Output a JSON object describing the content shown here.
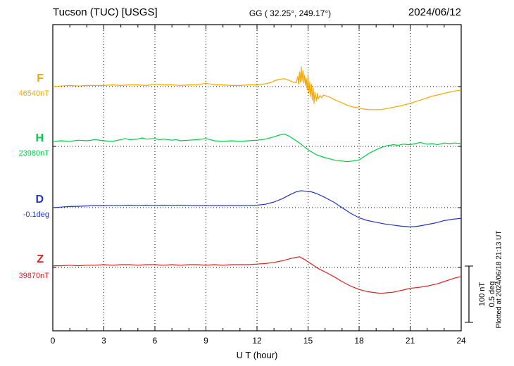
{
  "header": {
    "station": "Tucson (TUC)  [USGS]",
    "gg": "GG ( 32.25°, 249.17°)",
    "date": "2024/06/12"
  },
  "axis": {
    "xlabel": "U T (hour)"
  },
  "scale_bar": {
    "line1": "100 nT",
    "line2": "0.5 deg"
  },
  "plotted_at": "Plotted at 2024/06/18 21:13 UT",
  "chart_data": {
    "type": "line",
    "title": "Tucson (TUC) [USGS] magnetogram 2024/06/12",
    "xlabel": "U T (hour)",
    "xlim": [
      0,
      24
    ],
    "x_ticks": [
      0,
      3,
      6,
      9,
      12,
      15,
      18,
      21,
      24
    ],
    "grid": "dotted vertical lines every 3 h; dotted horizontal baseline per channel",
    "scale": {
      "nT_per_division": 100,
      "deg_per_division": 0.5
    },
    "series": [
      {
        "id": "F",
        "label": "F",
        "baseline_label": "46540nT",
        "unit": "nT",
        "color": "#F5A800",
        "points": [
          [
            0,
            0
          ],
          [
            0.5,
            1
          ],
          [
            1,
            2
          ],
          [
            1.5,
            1
          ],
          [
            2,
            2
          ],
          [
            2.5,
            2
          ],
          [
            3,
            2
          ],
          [
            3.5,
            3
          ],
          [
            4,
            2
          ],
          [
            4.5,
            3
          ],
          [
            5,
            3
          ],
          [
            5.5,
            2
          ],
          [
            6,
            4
          ],
          [
            6.5,
            3
          ],
          [
            7,
            3
          ],
          [
            7.5,
            2
          ],
          [
            8,
            3
          ],
          [
            8.5,
            3
          ],
          [
            9,
            6
          ],
          [
            9.3,
            4
          ],
          [
            9.6,
            3
          ],
          [
            10,
            3
          ],
          [
            10.5,
            2
          ],
          [
            11,
            2
          ],
          [
            11.5,
            3
          ],
          [
            12,
            3
          ],
          [
            12.5,
            5
          ],
          [
            12.8,
            7
          ],
          [
            13,
            10
          ],
          [
            13.3,
            13
          ],
          [
            13.6,
            14
          ],
          [
            13.9,
            11
          ],
          [
            14.1,
            8
          ],
          [
            14.3,
            7
          ],
          [
            14.4,
            18
          ],
          [
            14.45,
            4
          ],
          [
            14.5,
            26
          ],
          [
            14.55,
            8
          ],
          [
            14.6,
            35
          ],
          [
            14.65,
            10
          ],
          [
            14.7,
            28
          ],
          [
            14.75,
            6
          ],
          [
            14.8,
            20
          ],
          [
            14.85,
            2
          ],
          [
            14.9,
            15
          ],
          [
            14.95,
            -6
          ],
          [
            15,
            22
          ],
          [
            15.05,
            -12
          ],
          [
            15.1,
            8
          ],
          [
            15.15,
            -18
          ],
          [
            15.2,
            4
          ],
          [
            15.25,
            -24
          ],
          [
            15.3,
            -2
          ],
          [
            15.35,
            -30
          ],
          [
            15.4,
            -10
          ],
          [
            15.5,
            -26
          ],
          [
            15.55,
            -12
          ],
          [
            15.6,
            -22
          ],
          [
            15.7,
            -16
          ],
          [
            15.8,
            -20
          ],
          [
            15.9,
            -15
          ],
          [
            16,
            -16
          ],
          [
            16.3,
            -19
          ],
          [
            16.6,
            -24
          ],
          [
            17,
            -29
          ],
          [
            17.3,
            -33
          ],
          [
            17.6,
            -36
          ],
          [
            18,
            -38
          ],
          [
            18.3,
            -40
          ],
          [
            18.6,
            -41
          ],
          [
            19,
            -41
          ],
          [
            19.3,
            -41
          ],
          [
            19.6,
            -39
          ],
          [
            20,
            -37
          ],
          [
            20.3,
            -35
          ],
          [
            20.6,
            -33
          ],
          [
            21,
            -30
          ],
          [
            21.3,
            -27
          ],
          [
            21.6,
            -24
          ],
          [
            22,
            -20
          ],
          [
            22.3,
            -17
          ],
          [
            22.6,
            -15
          ],
          [
            23,
            -12
          ],
          [
            23.3,
            -10
          ],
          [
            23.6,
            -8
          ],
          [
            24,
            -6
          ]
        ]
      },
      {
        "id": "H",
        "label": "H",
        "baseline_label": "23980nT",
        "unit": "nT",
        "color": "#00CC44",
        "points": [
          [
            0,
            9
          ],
          [
            0.5,
            10
          ],
          [
            1,
            9
          ],
          [
            1.5,
            11
          ],
          [
            2,
            10
          ],
          [
            2.5,
            12
          ],
          [
            3,
            10
          ],
          [
            3.5,
            9
          ],
          [
            4,
            12
          ],
          [
            4.25,
            14
          ],
          [
            4.5,
            12
          ],
          [
            5,
            13
          ],
          [
            5.25,
            15
          ],
          [
            5.5,
            13
          ],
          [
            6,
            14
          ],
          [
            6.25,
            12
          ],
          [
            6.5,
            13
          ],
          [
            7,
            11
          ],
          [
            7.25,
            12
          ],
          [
            7.5,
            10
          ],
          [
            8,
            11
          ],
          [
            8.5,
            12
          ],
          [
            9,
            14
          ],
          [
            9.25,
            12
          ],
          [
            9.5,
            10
          ],
          [
            10,
            9
          ],
          [
            10.5,
            10
          ],
          [
            11,
            9
          ],
          [
            11.5,
            10
          ],
          [
            12,
            11
          ],
          [
            12.5,
            13
          ],
          [
            13,
            17
          ],
          [
            13.3,
            20
          ],
          [
            13.6,
            22
          ],
          [
            13.9,
            18
          ],
          [
            14.2,
            12
          ],
          [
            14.5,
            6
          ],
          [
            15,
            -6
          ],
          [
            15.5,
            -15
          ],
          [
            16,
            -20
          ],
          [
            16.5,
            -24
          ],
          [
            17,
            -26
          ],
          [
            17.3,
            -27
          ],
          [
            17.6,
            -26
          ],
          [
            18,
            -24
          ],
          [
            18.3,
            -18
          ],
          [
            18.6,
            -12
          ],
          [
            19,
            -6
          ],
          [
            19.3,
            -2
          ],
          [
            19.6,
            1
          ],
          [
            20,
            3
          ],
          [
            20.3,
            2
          ],
          [
            20.6,
            4
          ],
          [
            21,
            3
          ],
          [
            21.3,
            5
          ],
          [
            21.6,
            7
          ],
          [
            22,
            4
          ],
          [
            22.3,
            5
          ],
          [
            22.6,
            3
          ],
          [
            23,
            6
          ],
          [
            23.3,
            5
          ],
          [
            23.6,
            6
          ],
          [
            24,
            5
          ]
        ]
      },
      {
        "id": "D",
        "label": "D",
        "baseline_label": "-0.1deg",
        "unit": "deg",
        "color": "#2233CC",
        "points": [
          [
            0,
            0
          ],
          [
            0.5,
            0.005
          ],
          [
            1,
            0.01
          ],
          [
            1.5,
            0.012
          ],
          [
            2,
            0.015
          ],
          [
            2.5,
            0.018
          ],
          [
            3,
            0.018
          ],
          [
            3.5,
            0.02
          ],
          [
            4,
            0.02
          ],
          [
            4.5,
            0.022
          ],
          [
            5,
            0.02
          ],
          [
            5.5,
            0.022
          ],
          [
            6,
            0.02
          ],
          [
            6.5,
            0.022
          ],
          [
            7,
            0.02
          ],
          [
            7.5,
            0.022
          ],
          [
            8,
            0.02
          ],
          [
            8.5,
            0.018
          ],
          [
            9,
            0.02
          ],
          [
            9.5,
            0.018
          ],
          [
            10,
            0.018
          ],
          [
            10.5,
            0.02
          ],
          [
            11,
            0.018
          ],
          [
            11.5,
            0.02
          ],
          [
            12,
            0.022
          ],
          [
            12.5,
            0.03
          ],
          [
            13,
            0.05
          ],
          [
            13.5,
            0.08
          ],
          [
            14,
            0.12
          ],
          [
            14.3,
            0.14
          ],
          [
            14.6,
            0.15
          ],
          [
            14.9,
            0.145
          ],
          [
            15.2,
            0.14
          ],
          [
            15.5,
            0.125
          ],
          [
            16,
            0.09
          ],
          [
            16.5,
            0.05
          ],
          [
            17,
            0
          ],
          [
            17.5,
            -0.05
          ],
          [
            18,
            -0.09
          ],
          [
            18.5,
            -0.115
          ],
          [
            19,
            -0.13
          ],
          [
            19.5,
            -0.145
          ],
          [
            20,
            -0.155
          ],
          [
            20.5,
            -0.165
          ],
          [
            21,
            -0.17
          ],
          [
            21.3,
            -0.168
          ],
          [
            21.6,
            -0.162
          ],
          [
            22,
            -0.15
          ],
          [
            22.5,
            -0.135
          ],
          [
            23,
            -0.115
          ],
          [
            23.5,
            -0.103
          ],
          [
            24,
            -0.095
          ]
        ]
      },
      {
        "id": "Z",
        "label": "Z",
        "baseline_label": "39870nT",
        "unit": "nT",
        "color": "#E02020",
        "points": [
          [
            0,
            3
          ],
          [
            0.5,
            3
          ],
          [
            1,
            4
          ],
          [
            1.5,
            3
          ],
          [
            2,
            4
          ],
          [
            2.5,
            4
          ],
          [
            3,
            5
          ],
          [
            3.5,
            4
          ],
          [
            4,
            5
          ],
          [
            4.5,
            5
          ],
          [
            5,
            4
          ],
          [
            5.5,
            5
          ],
          [
            6,
            5
          ],
          [
            6.5,
            4
          ],
          [
            7,
            5
          ],
          [
            7.5,
            4
          ],
          [
            8,
            5
          ],
          [
            8.5,
            5
          ],
          [
            9,
            4
          ],
          [
            9.5,
            5
          ],
          [
            10,
            4
          ],
          [
            10.5,
            5
          ],
          [
            11,
            5
          ],
          [
            11.5,
            5
          ],
          [
            12,
            6
          ],
          [
            12.5,
            7
          ],
          [
            13,
            9
          ],
          [
            13.5,
            12
          ],
          [
            14,
            16
          ],
          [
            14.3,
            18
          ],
          [
            14.5,
            19
          ],
          [
            14.8,
            14
          ],
          [
            15,
            10
          ],
          [
            15.3,
            4
          ],
          [
            15.6,
            -2
          ],
          [
            16,
            -8
          ],
          [
            16.5,
            -16
          ],
          [
            17,
            -25
          ],
          [
            17.5,
            -33
          ],
          [
            18,
            -39
          ],
          [
            18.5,
            -43
          ],
          [
            19,
            -45
          ],
          [
            19.3,
            -46
          ],
          [
            19.6,
            -45
          ],
          [
            20,
            -44
          ],
          [
            20.3,
            -42
          ],
          [
            20.6,
            -40
          ],
          [
            21,
            -37
          ],
          [
            21.3,
            -36
          ],
          [
            21.6,
            -35
          ],
          [
            22,
            -33
          ],
          [
            22.3,
            -31
          ],
          [
            22.6,
            -29
          ],
          [
            23,
            -25
          ],
          [
            23.3,
            -22
          ],
          [
            23.6,
            -19
          ],
          [
            24,
            -16
          ]
        ]
      }
    ]
  }
}
